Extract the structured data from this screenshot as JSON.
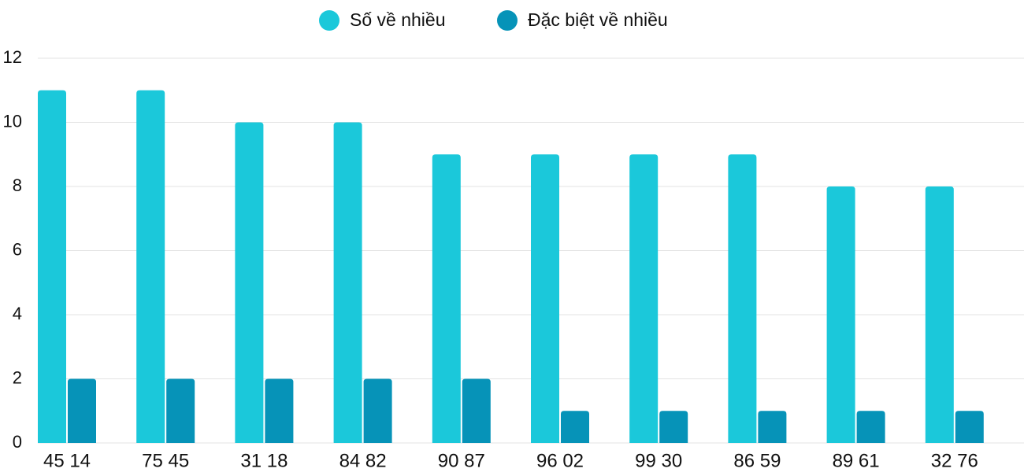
{
  "chart_data": {
    "type": "bar",
    "categories": [
      "45 14",
      "75 45",
      "31 18",
      "84 82",
      "90 87",
      "96 02",
      "99 30",
      "86 59",
      "89 61",
      "32 76"
    ],
    "series": [
      {
        "name": "Số về nhiều",
        "color": "#1bc8da",
        "values": [
          11,
          11,
          10,
          10,
          9,
          9,
          9,
          9,
          8,
          8
        ]
      },
      {
        "name": "Đặc biệt về nhiều",
        "color": "#0693b8",
        "values": [
          2,
          2,
          2,
          2,
          2,
          1,
          1,
          1,
          1,
          1
        ]
      }
    ],
    "ylim": [
      0,
      12
    ],
    "yticks": [
      0,
      2,
      4,
      6,
      8,
      10,
      12
    ],
    "grid": true,
    "legend": "top"
  }
}
